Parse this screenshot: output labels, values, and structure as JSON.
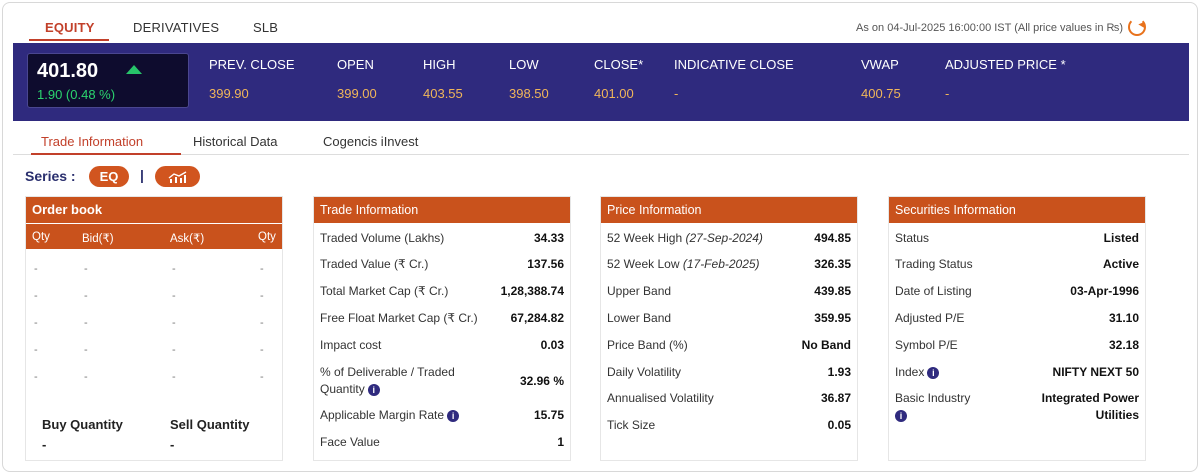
{
  "top_tabs": [
    "EQUITY",
    "DERIVATIVES",
    "SLB"
  ],
  "as_on": "As on 04-Jul-2025 16:00:00 IST (All price values in ₨)",
  "quote": {
    "ltp": "401.80",
    "change": "1.90 (0.48 %)",
    "fields": [
      {
        "label": "PREV. CLOSE",
        "value": "399.90"
      },
      {
        "label": "OPEN",
        "value": "399.00"
      },
      {
        "label": "HIGH",
        "value": "403.55"
      },
      {
        "label": "LOW",
        "value": "398.50"
      },
      {
        "label": "CLOSE*",
        "value": "401.00"
      },
      {
        "label": "INDICATIVE CLOSE",
        "value": "-"
      },
      {
        "label": "VWAP",
        "value": "400.75"
      },
      {
        "label": "ADJUSTED PRICE *",
        "value": "-"
      }
    ]
  },
  "sub_tabs": [
    "Trade Information",
    "Historical Data",
    "Cogencis iInvest"
  ],
  "series": {
    "label": "Series :",
    "value": "EQ",
    "separator": "|"
  },
  "order_book": {
    "title": "Order book",
    "columns": [
      "Qty",
      "Bid(₹)",
      "Ask(₹)",
      "Qty"
    ],
    "rows": [
      [
        "-",
        "-",
        "-",
        "-"
      ],
      [
        "-",
        "-",
        "-",
        "-"
      ],
      [
        "-",
        "-",
        "-",
        "-"
      ],
      [
        "-",
        "-",
        "-",
        "-"
      ],
      [
        "-",
        "-",
        "-",
        "-"
      ]
    ],
    "buy_label": "Buy Quantity",
    "buy_value": "-",
    "sell_label": "Sell Quantity",
    "sell_value": "-"
  },
  "trade_info": {
    "title": "Trade Information",
    "rows": [
      {
        "label": "Traded Volume (Lakhs)",
        "value": "34.33"
      },
      {
        "label": "Traded Value (₹ Cr.)",
        "value": "137.56"
      },
      {
        "label": "Total Market Cap (₹ Cr.)",
        "value": "1,28,388.74"
      },
      {
        "label": "Free Float Market Cap (₹ Cr.)",
        "value": "67,284.82"
      },
      {
        "label": "Impact cost",
        "value": "0.03"
      },
      {
        "label": "% of Deliverable / Traded",
        "label2": "Quantity",
        "value": "32.96 %"
      },
      {
        "label": "Applicable Margin Rate",
        "value": "15.75"
      },
      {
        "label": "Face Value",
        "value": "1"
      }
    ]
  },
  "price_info": {
    "title": "Price Information",
    "rows": [
      {
        "label": "52 Week High",
        "note": "(27-Sep-2024)",
        "value": "494.85"
      },
      {
        "label": "52 Week Low",
        "note": "(17-Feb-2025)",
        "value": "326.35"
      },
      {
        "label": "Upper Band",
        "value": "439.85"
      },
      {
        "label": "Lower Band",
        "value": "359.95"
      },
      {
        "label": "Price Band (%)",
        "value": "No Band"
      },
      {
        "label": "Daily Volatility",
        "value": "1.93"
      },
      {
        "label": "Annualised Volatility",
        "value": "36.87"
      },
      {
        "label": "Tick Size",
        "value": "0.05"
      }
    ]
  },
  "securities_info": {
    "title": "Securities Information",
    "rows": [
      {
        "label": "Status",
        "value": "Listed"
      },
      {
        "label": "Trading Status",
        "value": "Active"
      },
      {
        "label": "Date of Listing",
        "value": "03-Apr-1996"
      },
      {
        "label": "Adjusted P/E",
        "value": "31.10"
      },
      {
        "label": "Symbol P/E",
        "value": "32.18"
      },
      {
        "label": "Index",
        "value": "NIFTY NEXT 50"
      },
      {
        "label": "Basic Industry",
        "value": "Integrated Power",
        "value2": "Utilities"
      }
    ]
  },
  "info_icon": "i",
  "colors": {
    "accent": "#c9521c",
    "band": "#2f2a7e",
    "up": "#27c46a",
    "quote_value": "#f0b65a"
  }
}
